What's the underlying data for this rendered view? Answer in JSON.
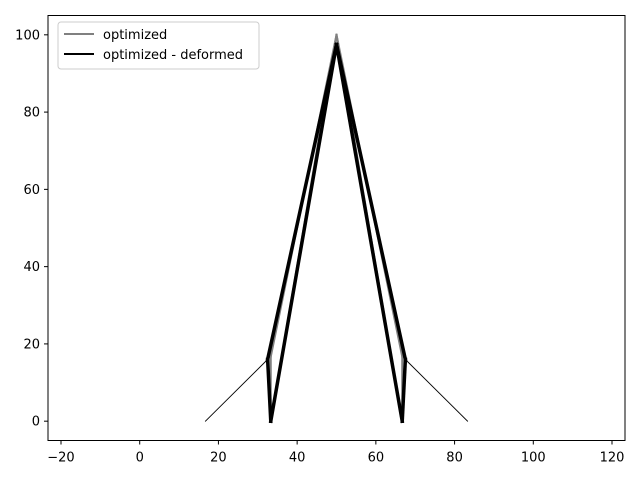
{
  "chart_data": {
    "type": "line",
    "title": "",
    "xlabel": "",
    "ylabel": "",
    "xlim": [
      -23.3,
      123.3
    ],
    "ylim": [
      -5,
      105
    ],
    "xticks": [
      -20,
      0,
      20,
      40,
      60,
      80,
      100,
      120
    ],
    "yticks": [
      0,
      20,
      40,
      60,
      80,
      100
    ],
    "grid": false,
    "legend_position": "top-left",
    "series": [
      {
        "name": "optimized",
        "color": "#808080",
        "style": "thin",
        "segments": [
          [
            [
              33.3,
              0
            ],
            [
              50,
              100
            ]
          ],
          [
            [
              66.7,
              0
            ],
            [
              50,
              100
            ]
          ],
          [
            [
              33.3,
              16.7
            ],
            [
              50,
              100
            ]
          ],
          [
            [
              66.7,
              16.7
            ],
            [
              50,
              100
            ]
          ],
          [
            [
              33.3,
              0
            ],
            [
              33.3,
              16.7
            ]
          ],
          [
            [
              66.7,
              0
            ],
            [
              66.7,
              16.7
            ]
          ],
          [
            [
              16.7,
              0
            ],
            [
              33.3,
              16.7
            ]
          ],
          [
            [
              83.3,
              0
            ],
            [
              66.7,
              16.7
            ]
          ]
        ]
      },
      {
        "name": "optimized - deformed",
        "color": "#000000",
        "style": "thick",
        "segments": [
          [
            [
              33.3,
              0
            ],
            [
              50,
              97.5
            ]
          ],
          [
            [
              66.7,
              0
            ],
            [
              50,
              97.5
            ]
          ],
          [
            [
              32.5,
              16.0
            ],
            [
              50,
              97.5
            ]
          ],
          [
            [
              67.5,
              16.0
            ],
            [
              50,
              97.5
            ]
          ],
          [
            [
              33.3,
              0
            ],
            [
              32.5,
              16.0
            ]
          ],
          [
            [
              66.7,
              0
            ],
            [
              67.5,
              16.0
            ]
          ],
          [
            [
              16.7,
              0
            ],
            [
              32.5,
              16.0
            ]
          ],
          [
            [
              83.3,
              0
            ],
            [
              67.5,
              16.0
            ]
          ]
        ]
      }
    ],
    "legend": [
      {
        "label": "optimized",
        "color": "#808080"
      },
      {
        "label": "optimized - deformed",
        "color": "#000000"
      }
    ]
  }
}
